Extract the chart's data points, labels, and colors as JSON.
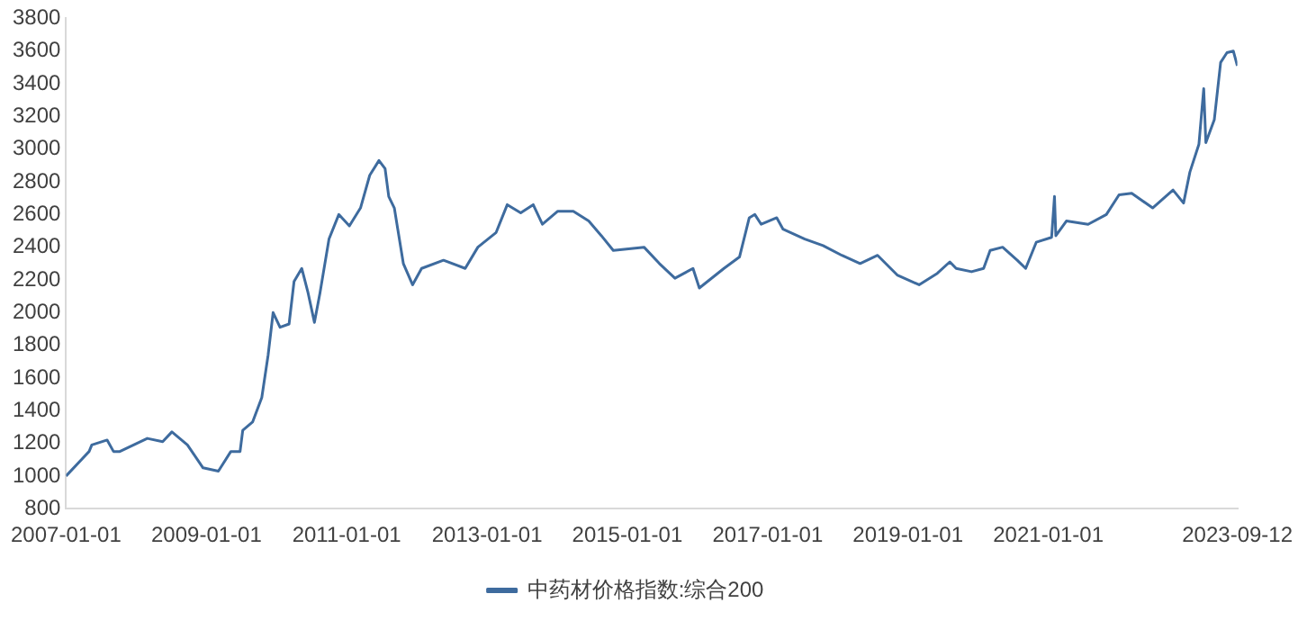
{
  "chart_data": {
    "type": "line",
    "legend": "bottom",
    "grid": false,
    "marker": "none",
    "xlim": [
      "2007-01-01",
      "2023-09-12"
    ],
    "xticks": [
      "2007-01-01",
      "2009-01-01",
      "2011-01-01",
      "2013-01-01",
      "2015-01-01",
      "2017-01-01",
      "2019-01-01",
      "2021-01-01",
      "2023-09-12"
    ],
    "ylim": [
      800,
      3800
    ],
    "yticks": [
      800,
      1000,
      1200,
      1400,
      1600,
      1800,
      2000,
      2200,
      2400,
      2600,
      2800,
      3000,
      3200,
      3400,
      3600,
      3800
    ],
    "x": [
      "2007-01-01",
      "2007-05-01",
      "2007-05-15",
      "2007-08-03",
      "2007-09-05",
      "2007-10-08",
      "2008-02-28",
      "2008-05-18",
      "2008-07-05",
      "2008-09-24",
      "2008-12-14",
      "2009-03-04",
      "2009-05-08",
      "2009-06-25",
      "2009-07-09",
      "2009-08-29",
      "2009-10-16",
      "2009-11-18",
      "2009-12-14",
      "2010-01-19",
      "2010-03-07",
      "2010-04-02",
      "2010-05-12",
      "2010-06-14",
      "2010-07-17",
      "2010-08-15",
      "2010-10-01",
      "2010-11-21",
      "2011-01-15",
      "2011-03-14",
      "2011-05-01",
      "2011-06-18",
      "2011-07-20",
      "2011-08-08",
      "2011-09-06",
      "2011-10-23",
      "2011-12-10",
      "2012-01-26",
      "2012-05-19",
      "2012-09-09",
      "2012-11-14",
      "2013-02-17",
      "2013-04-16",
      "2013-06-25",
      "2013-08-29",
      "2013-10-16",
      "2014-01-04",
      "2014-03-26",
      "2014-06-14",
      "2014-08-19",
      "2014-10-20",
      "2015-03-29",
      "2015-06-17",
      "2015-09-06",
      "2015-12-09",
      "2016-01-11",
      "2016-05-18",
      "2016-08-07",
      "2016-09-27",
      "2016-10-26",
      "2016-11-28",
      "2017-02-17",
      "2017-03-22",
      "2017-07-13",
      "2017-10-16",
      "2018-01-22",
      "2018-04-27",
      "2018-07-27",
      "2018-11-06",
      "2019-02-28",
      "2019-06-03",
      "2019-08-07",
      "2019-09-09",
      "2019-11-28",
      "2020-01-30",
      "2020-03-04",
      "2020-05-08",
      "2020-07-23",
      "2020-09-05",
      "2020-10-30",
      "2021-01-18",
      "2021-02-02",
      "2021-02-09",
      "2021-04-05",
      "2021-07-27",
      "2021-10-30",
      "2022-01-04",
      "2022-03-11",
      "2022-06-28",
      "2022-10-12",
      "2022-12-06",
      "2023-01-08",
      "2023-02-24",
      "2023-03-21",
      "2023-04-01",
      "2023-05-15",
      "2023-06-17",
      "2023-07-20",
      "2023-08-22",
      "2023-09-12"
    ],
    "series": [
      {
        "name": "中药材价格指数:综合200",
        "color": "#3e6b9e",
        "values": [
          1000,
          1150,
          1190,
          1220,
          1150,
          1150,
          1230,
          1210,
          1270,
          1190,
          1050,
          1030,
          1150,
          1150,
          1280,
          1330,
          1480,
          1740,
          2000,
          1910,
          1930,
          2190,
          2270,
          2120,
          1940,
          2120,
          2450,
          2600,
          2530,
          2640,
          2840,
          2930,
          2880,
          2710,
          2640,
          2300,
          2170,
          2270,
          2320,
          2270,
          2400,
          2490,
          2660,
          2610,
          2660,
          2540,
          2620,
          2620,
          2560,
          2470,
          2380,
          2400,
          2300,
          2210,
          2270,
          2150,
          2270,
          2340,
          2580,
          2600,
          2540,
          2580,
          2510,
          2450,
          2410,
          2350,
          2300,
          2350,
          2230,
          2170,
          2240,
          2310,
          2270,
          2250,
          2270,
          2380,
          2400,
          2320,
          2270,
          2430,
          2460,
          2710,
          2470,
          2560,
          2540,
          2600,
          2720,
          2730,
          2640,
          2750,
          2670,
          2860,
          3030,
          3370,
          3040,
          3180,
          3530,
          3590,
          3600,
          3510
        ]
      }
    ]
  }
}
